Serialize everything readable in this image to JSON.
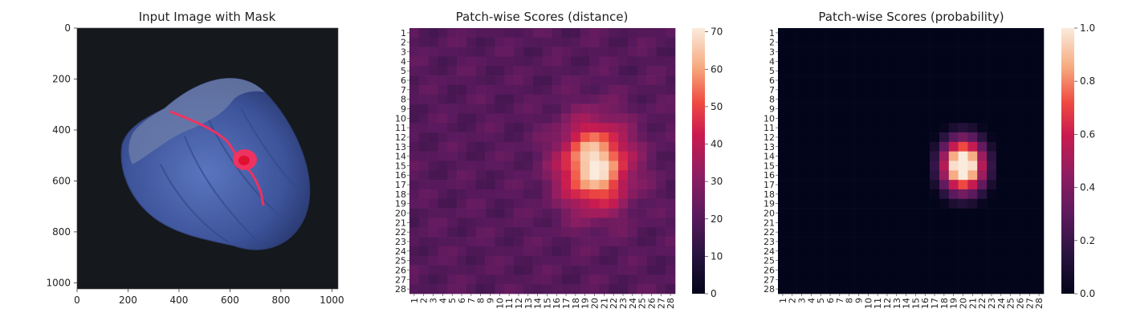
{
  "chart_data": [
    {
      "type": "image",
      "title": "Input Image with Mask",
      "x_ticks": [
        "0",
        "200",
        "400",
        "600",
        "800",
        "1000"
      ],
      "y_ticks": [
        "0",
        "200",
        "400",
        "600",
        "800",
        "1000"
      ],
      "xlim": [
        0,
        1024
      ],
      "ylim": [
        1024,
        0
      ],
      "image_content": "blue hazelnut on dark background with red crack mask overlay",
      "colors": {
        "background": "#15181c",
        "object": "#4a63a8",
        "mask": "#ff2d5a"
      }
    },
    {
      "type": "heatmap",
      "title": "Patch-wise Scores (distance)",
      "rows": 28,
      "cols": 28,
      "x_ticks": [
        "1",
        "2",
        "3",
        "4",
        "5",
        "6",
        "7",
        "8",
        "9",
        "10",
        "11",
        "12",
        "13",
        "14",
        "15",
        "16",
        "17",
        "18",
        "19",
        "20",
        "21",
        "22",
        "23",
        "24",
        "25",
        "26",
        "27",
        "28"
      ],
      "y_ticks": [
        "1",
        "2",
        "3",
        "4",
        "5",
        "6",
        "7",
        "8",
        "9",
        "10",
        "11",
        "12",
        "13",
        "14",
        "15",
        "16",
        "17",
        "18",
        "19",
        "20",
        "21",
        "22",
        "23",
        "24",
        "25",
        "26",
        "27",
        "28"
      ],
      "colorbar": {
        "min": 0,
        "max": 71,
        "ticks": [
          "0",
          "10",
          "20",
          "30",
          "40",
          "50",
          "60",
          "70"
        ]
      },
      "colormap": "rocket",
      "peak": {
        "row": 15,
        "col": 20,
        "value": 71
      },
      "baseline_value": 20
    },
    {
      "type": "heatmap",
      "title": "Patch-wise Scores (probability)",
      "rows": 28,
      "cols": 28,
      "x_ticks": [
        "1",
        "2",
        "3",
        "4",
        "5",
        "6",
        "7",
        "8",
        "9",
        "10",
        "11",
        "12",
        "13",
        "14",
        "15",
        "16",
        "17",
        "18",
        "19",
        "20",
        "21",
        "22",
        "23",
        "24",
        "25",
        "26",
        "27",
        "28"
      ],
      "y_ticks": [
        "1",
        "2",
        "3",
        "4",
        "5",
        "6",
        "7",
        "8",
        "9",
        "10",
        "11",
        "12",
        "13",
        "14",
        "15",
        "16",
        "17",
        "18",
        "19",
        "20",
        "21",
        "22",
        "23",
        "24",
        "25",
        "26",
        "27",
        "28"
      ],
      "colorbar": {
        "min": 0,
        "max": 1,
        "ticks": [
          "0.0",
          "0.2",
          "0.4",
          "0.6",
          "0.8",
          "1.0"
        ]
      },
      "colormap": "rocket",
      "peak": {
        "row": 15,
        "col": 20,
        "value": 1.0
      },
      "baseline_value": 0.0
    }
  ]
}
